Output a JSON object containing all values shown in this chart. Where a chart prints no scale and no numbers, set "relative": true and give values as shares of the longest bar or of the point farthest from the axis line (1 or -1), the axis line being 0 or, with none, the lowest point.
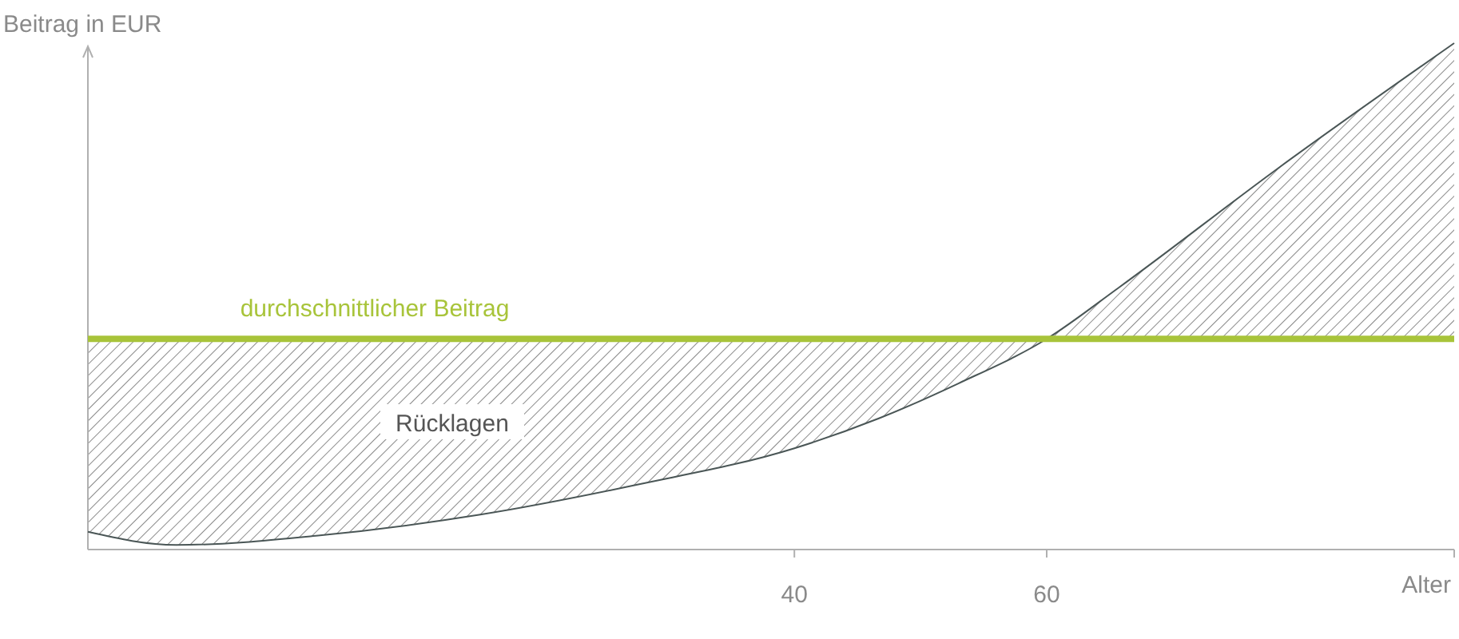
{
  "chart_data": {
    "type": "line",
    "relative": true,
    "xlabel": "Alter",
    "ylabel": "Beitrag in EUR",
    "xlim": [
      -16,
      92.3
    ],
    "xticks": [
      40,
      60
    ],
    "marker": "none",
    "line_style": "solid",
    "series": [
      {
        "color": "#4a5656",
        "x": [
          -16,
          -9,
          2.4,
          15.1,
          27.7,
          40,
          46.7,
          53,
          60,
          65.7,
          78.4,
          92.3
        ],
        "values": [
          0.035,
          0.009,
          0.028,
          0.069,
          0.129,
          0.2,
          0.259,
          0.328,
          0.416,
          0.517,
          0.754,
          1
        ],
        "lower": [
          0.035,
          0.009,
          0.028,
          0.069,
          0.129,
          0.2,
          0.259,
          0.328,
          0.416,
          0.517,
          0.754,
          1
        ],
        "upper": [
          0.416,
          0.416,
          0.416,
          0.416,
          0.416,
          0.416,
          0.416,
          0.416,
          0.416,
          0.416,
          0.416,
          0.416
        ]
      },
      {
        "name": "durchschnittlicher Beitrag",
        "color": "#a8c43a",
        "x": [
          -16,
          92.3
        ],
        "values": [
          0.416,
          0.416
        ]
      }
    ],
    "annotations": [
      "Rücklagen"
    ]
  }
}
